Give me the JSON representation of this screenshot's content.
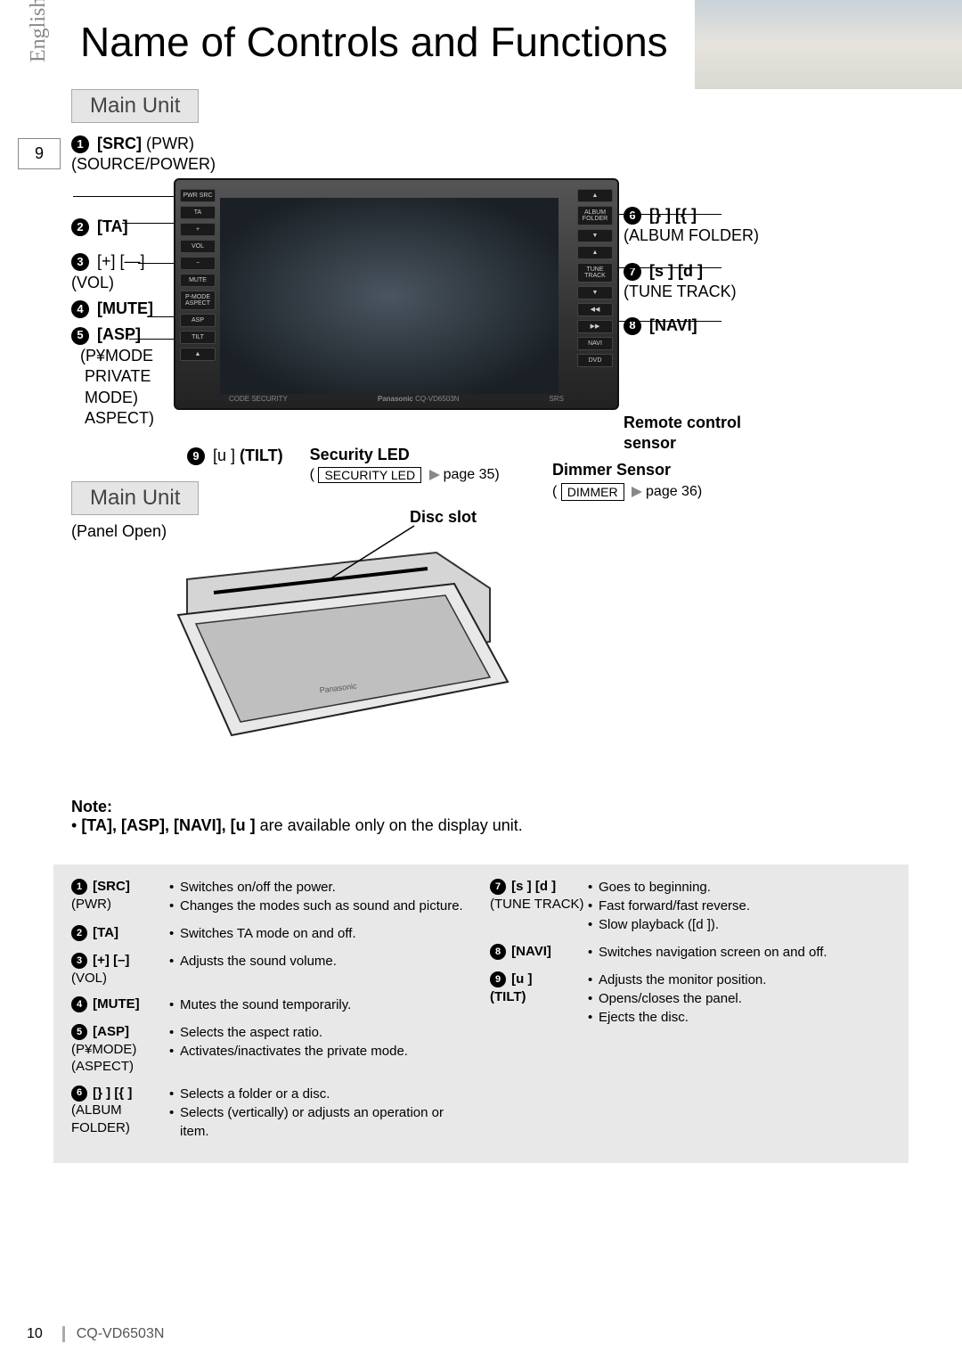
{
  "page": {
    "title": "Name of Controls and Functions",
    "language": "English",
    "tab_number": "9",
    "footer_page": "10",
    "footer_model": "CQ-VD6503N"
  },
  "section1": {
    "header": "Main Unit",
    "labels_left": {
      "l1": {
        "num": "1",
        "bold": "[SRC]",
        "plain": " (PWR)",
        "sub": "(SOURCE/POWER)"
      },
      "l2": {
        "num": "2",
        "bold": "[TA]"
      },
      "l3": {
        "num": "3",
        "plain": "[+] [—]",
        "sub": "(VOL)"
      },
      "l4": {
        "num": "4",
        "bold": "[MUTE]"
      },
      "l5": {
        "num": "5",
        "bold": "[ASP]",
        "sub1": "(P¥MODE",
        "sub2": "PRIVATE",
        "sub3": "MODE)",
        "sub4": "ASPECT)"
      },
      "l9": {
        "num": "9",
        "plain": "[u ] ",
        "boldTilt": "(TILT)"
      }
    },
    "labels_right": {
      "r6": {
        "num": "6",
        "bold": "[} ] [{ ]",
        "sub": "(ALBUM FOLDER)"
      },
      "r7": {
        "num": "7",
        "bold": "[s ] [d ]",
        "sub": "(TUNE TRACK)"
      },
      "r8": {
        "num": "8",
        "bold": "[NAVI]"
      },
      "remote": {
        "line1": "Remote control",
        "line2": "sensor"
      },
      "dimmer": {
        "title": "Dimmer Sensor",
        "box": "DIMMER",
        "page": "page 36)"
      }
    },
    "security": {
      "title": "Security LED",
      "box": "SECURITY LED",
      "page": "page 35)"
    },
    "device": {
      "btns_left": [
        "PWR\nSRC",
        "TA",
        "+",
        "VOL",
        "−",
        "MUTE",
        "P-MODE\nASPECT",
        "ASP",
        "TILT",
        "▲"
      ],
      "btns_right": [
        "▲",
        "ALBUM\nFOLDER",
        "▼",
        "▲",
        "TUNE\nTRACK",
        "▼",
        "◀◀",
        "▶▶",
        "NAVI",
        "DVD"
      ],
      "brand_left": "CODE SECURITY",
      "brand_center": "Panasonic",
      "brand_model": "CQ-VD6503N",
      "brand_right": "SRS"
    }
  },
  "section2": {
    "header": "Main Unit",
    "sub": "(Panel Open)",
    "disc_slot": "Disc slot"
  },
  "note": {
    "title": "Note:",
    "bullet_pre": "• ",
    "bold": "[TA], [ASP], [NAVI], [u ]",
    "rest": " are available only on the display unit."
  },
  "desc": {
    "col1": [
      {
        "num": "1",
        "label_bold": "[SRC]",
        "label_plain": "(PWR)",
        "bullets": [
          "Switches on/off the power.",
          "Changes the modes such as sound and picture."
        ]
      },
      {
        "num": "2",
        "label_bold": "[TA]",
        "label_plain": "",
        "bullets": [
          "Switches TA mode on and off."
        ]
      },
      {
        "num": "3",
        "label_bold": "[+] [–]",
        "label_plain": "(VOL)",
        "bullets": [
          "Adjusts the sound volume."
        ]
      },
      {
        "num": "4",
        "label_bold": "[MUTE]",
        "label_plain": "",
        "bullets": [
          "Mutes the sound temporarily."
        ]
      },
      {
        "num": "5",
        "label_bold": "[ASP]",
        "label_plain": "(P¥MODE) (ASPECT)",
        "bullets": [
          "Selects the aspect ratio.",
          "Activates/inactivates the private mode."
        ]
      },
      {
        "num": "6",
        "label_bold": "[} ] [{ ]",
        "label_plain": "(ALBUM FOLDER)",
        "bullets": [
          "Selects a folder or a disc.",
          "Selects (vertically) or adjusts an operation or item."
        ]
      }
    ],
    "col2": [
      {
        "num": "7",
        "label_bold": "[s ] [d ]",
        "label_plain": "(TUNE TRACK)",
        "bullets": [
          "Goes to beginning.",
          "Fast forward/fast reverse.",
          "Slow playback ([d ])."
        ]
      },
      {
        "num": "8",
        "label_bold": "[NAVI]",
        "label_plain": "",
        "bullets": [
          "Switches navigation screen on and off."
        ]
      },
      {
        "num": "9",
        "label_bold": "[u ]",
        "label_plain_bold": "(TILT)",
        "bullets": [
          "Adjusts the monitor position.",
          "Opens/closes the panel.",
          "Ejects the disc."
        ]
      }
    ]
  }
}
